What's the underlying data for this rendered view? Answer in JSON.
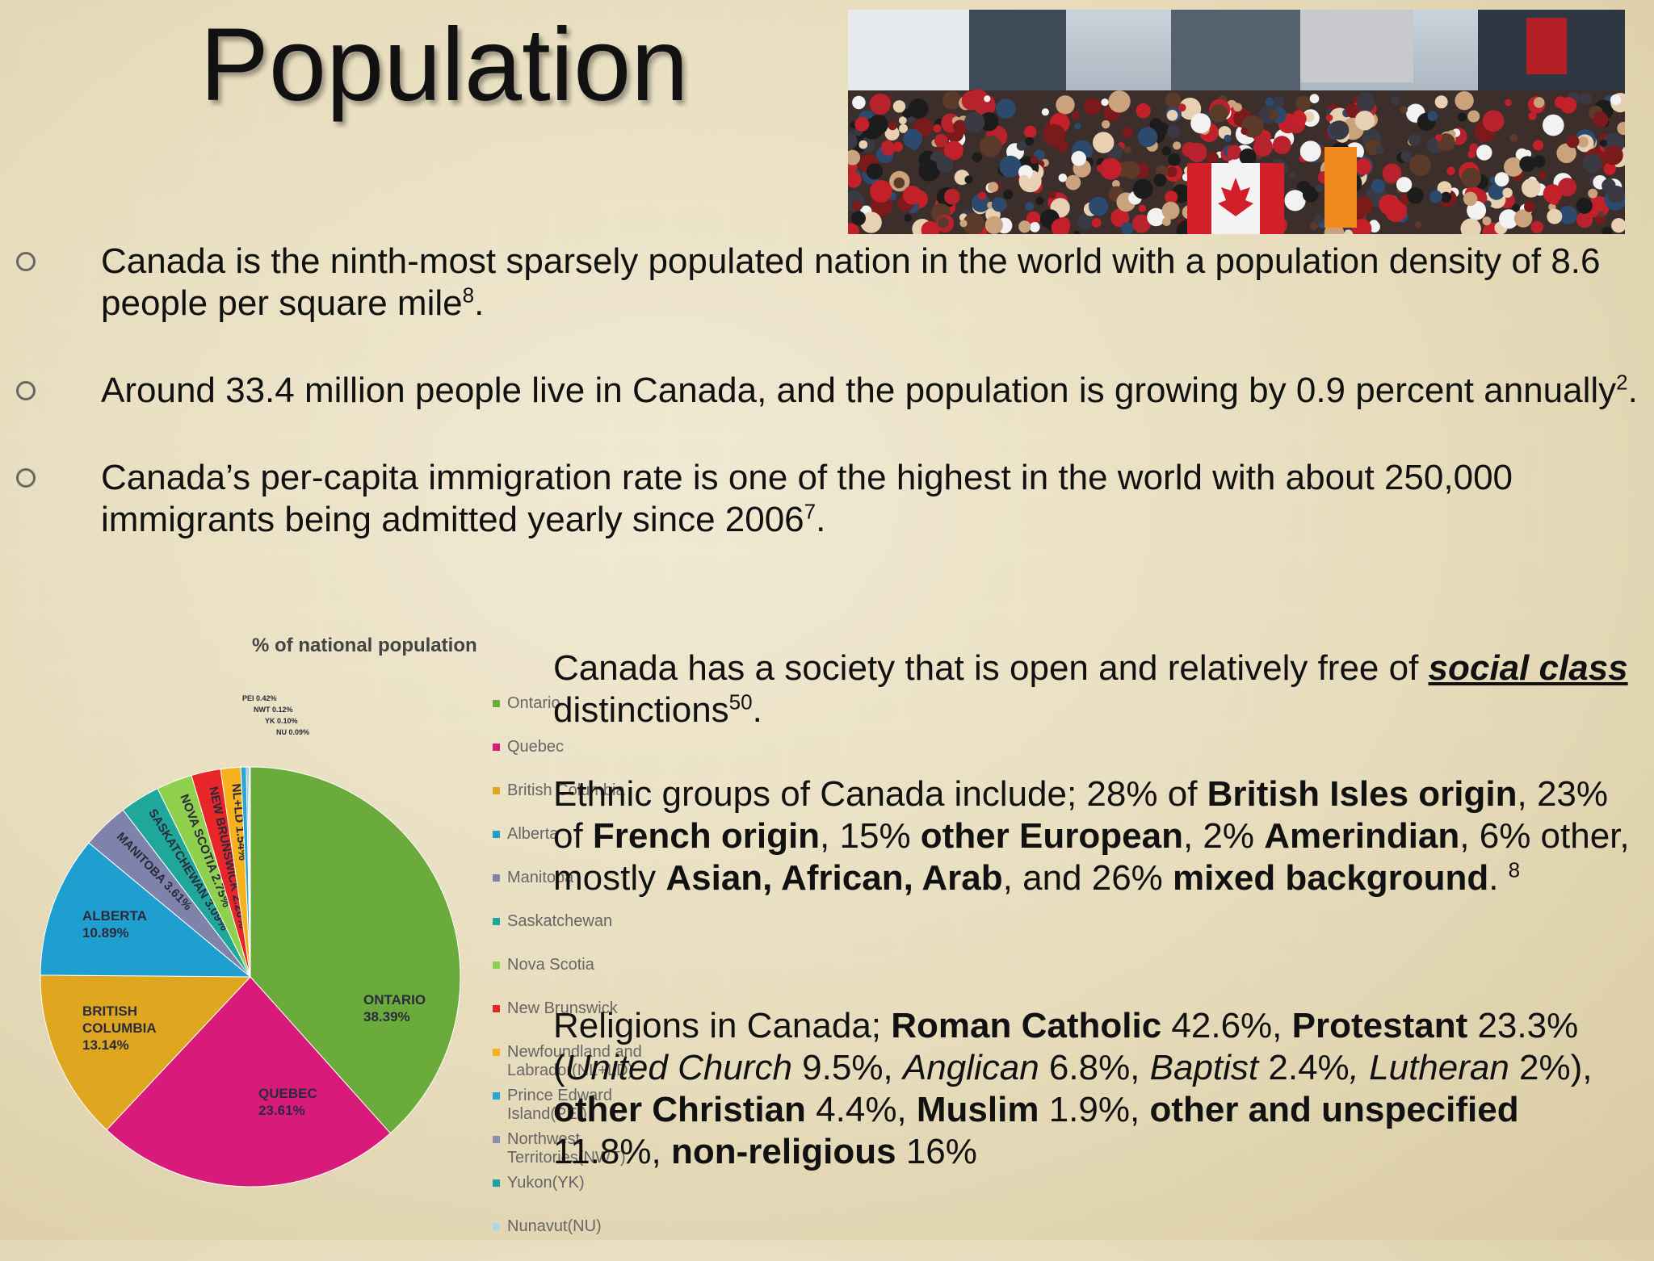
{
  "slide": {
    "title": "Population",
    "bullets": [
      {
        "text": "Canada is the ninth-most sparsely populated nation in the world with a population density of  8.6 people per square mile",
        "sup": "8",
        "tail": "."
      },
      {
        "text": "Around 33.4 million people live in Canada, and the population is growing by 0.9 percent annually",
        "sup": "2",
        "tail": "."
      },
      {
        "text": "Canada’s per-capita immigration rate is one of the highest in the world with about 250,000 immigrants being admitted yearly since 2006",
        "sup": "7",
        "tail": "."
      }
    ],
    "photo_alt": "Crowd on a city street with a Canadian flag",
    "social": {
      "pre": "Canada has a society that is open and relatively free of ",
      "emph": "social class",
      "post": " distinctions",
      "sup": "50",
      "tail": "."
    },
    "ethnic": {
      "t1": "Ethnic groups of Canada include; 28% of ",
      "b1": "British Isles origin",
      "t2": ", 23% of ",
      "b2": "French origin",
      "t3": ", 15% ",
      "b3": "other European",
      "t4": ", 2% ",
      "b4": "Amerindian",
      "t5": ", 6% other, mostly ",
      "b5": "Asian, African, Arab",
      "t6": ", and 26% ",
      "b6": "mixed background",
      "t7": ". ",
      "sup": "8"
    },
    "religion": {
      "t1": "Religions in Canada; ",
      "b1": "Roman Catholic",
      "t2": " 42.6%, ",
      "b2": "Protestant",
      "t3": " 23.3% (",
      "i1": "United Church",
      "t4": " 9.5%, ",
      "i2": "Anglican",
      "t5": " 6.8%, ",
      "i3": "Baptist",
      "t6": " 2.4%",
      "i4": ", Lutheran",
      "t7": " 2%), ",
      "b3": "other Christian",
      "t8": " 4.4%, ",
      "b4": "Muslim",
      "t9": " 1.9%, ",
      "b5": "other and unspecified",
      "t10": " 11.8%, ",
      "b6": "non-religious",
      "t11": " 16%"
    }
  },
  "chart_data": {
    "type": "pie",
    "title": "% of national population",
    "slices": [
      {
        "label": "ONTARIO",
        "value": 38.39,
        "display": "38.39%",
        "color": "#6aab3c",
        "legend": "Ontario"
      },
      {
        "label": "QUEBEC",
        "value": 23.61,
        "display": "23.61%",
        "color": "#d81b7a",
        "legend": "Quebec"
      },
      {
        "label": "BRITISH COLUMBIA",
        "value": 13.14,
        "display": "13.14%",
        "color": "#dfa71f",
        "legend": "British Columbia"
      },
      {
        "label": "ALBERTA",
        "value": 10.89,
        "display": "10.89%",
        "color": "#1f9fd0",
        "legend": "Alberta"
      },
      {
        "label": "MANITOBA",
        "value": 3.61,
        "display": "3.61%",
        "color": "#7f82aa",
        "legend": "Manitoba"
      },
      {
        "label": "SASKATCHEWAN",
        "value": 3.09,
        "display": "3.09%",
        "color": "#1ea79a",
        "legend": "Saskatchewan"
      },
      {
        "label": "NOVA SCOTIA",
        "value": 2.75,
        "display": "2.75%",
        "color": "#8fd14f",
        "legend": "Nova Scotia"
      },
      {
        "label": "NEW BRUNSWICK",
        "value": 2.26,
        "display": "2.26%",
        "color": "#e8262a",
        "legend": "New Brunswick"
      },
      {
        "label": "NL+LD",
        "value": 1.54,
        "display": "1.54%",
        "color": "#f5b21c",
        "legend": "Newfoundland and Labrador(NL+LD)"
      },
      {
        "label": "PEI",
        "value": 0.42,
        "display": "0.42%",
        "color": "#29a8d6",
        "legend": "Prince Edward Island(PEI)"
      },
      {
        "label": "NWT",
        "value": 0.12,
        "display": "0.12%",
        "color": "#8a8fb0",
        "legend": "Northwest Territories(NWT)"
      },
      {
        "label": "YK",
        "value": 0.1,
        "display": "0.10%",
        "color": "#1aa3a3",
        "legend": "Yukon(YK)"
      },
      {
        "label": "NU",
        "value": 0.09,
        "display": "0.09%",
        "color": "#a8d8ea",
        "legend": "Nunavut(NU)"
      }
    ]
  }
}
